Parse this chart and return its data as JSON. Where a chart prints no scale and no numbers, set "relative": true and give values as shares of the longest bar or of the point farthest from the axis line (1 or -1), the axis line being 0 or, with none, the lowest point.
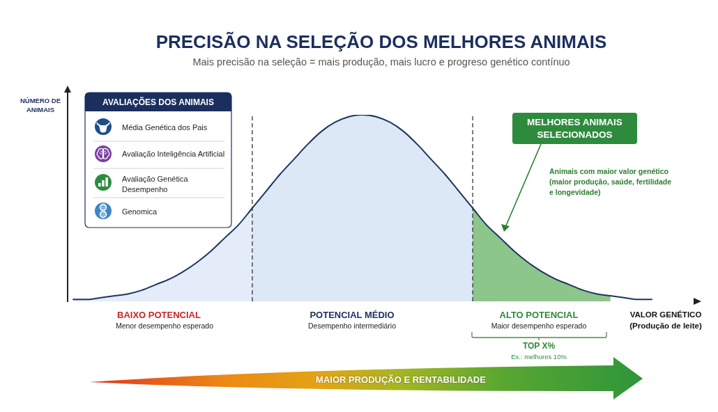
{
  "chart_data": {
    "type": "area",
    "title": "PRECISÃO NA SELEÇÃO DOS MELHORES ANIMAIS",
    "subtitle": "Mais precisão na seleção = mais produção, mais lucro e progreso genético contínuo",
    "xlabel": "VALOR GENÉTICO (Produção de leite)",
    "ylabel": "NÚMERO DE ANIMAIS",
    "relative": true,
    "categories": [
      null,
      null,
      null,
      null,
      null,
      null,
      null,
      null,
      null,
      null,
      null,
      null,
      null,
      null,
      null,
      null,
      null,
      null,
      null,
      null,
      null,
      null,
      null,
      null,
      null,
      null,
      null,
      null,
      null,
      null,
      null,
      null,
      null,
      null,
      null,
      null,
      null,
      null,
      null,
      null,
      null,
      null,
      null
    ],
    "series": [
      {
        "color": "#e3ecf8",
        "values": [
          0.01,
          0.01,
          0.02,
          0.03,
          0.04,
          0.06,
          0.09,
          0.12,
          0.16,
          0.21,
          0.27,
          0.34,
          0.41,
          0.5,
          null,
          null,
          null,
          null,
          null,
          null,
          null,
          null,
          null,
          null,
          null,
          null,
          null,
          null,
          null,
          null,
          null,
          null,
          null,
          null,
          null,
          null,
          null,
          null,
          null,
          null,
          null,
          null,
          null
        ]
      },
      {
        "color": "#dde8f6",
        "values": [
          null,
          null,
          null,
          null,
          null,
          null,
          null,
          null,
          null,
          null,
          null,
          null,
          null,
          0.5,
          0.59,
          0.68,
          0.76,
          0.84,
          0.91,
          0.96,
          0.99,
          1,
          0.99,
          0.96,
          0.91,
          0.84,
          0.76,
          0.68,
          0.59,
          0.5,
          null,
          null,
          null,
          null,
          null,
          null,
          null,
          null,
          null,
          null,
          null,
          null,
          null
        ]
      },
      {
        "color": "#8cc68a",
        "values": [
          null,
          null,
          null,
          null,
          null,
          null,
          null,
          null,
          null,
          null,
          null,
          null,
          null,
          null,
          null,
          null,
          null,
          null,
          null,
          null,
          null,
          null,
          null,
          null,
          null,
          null,
          null,
          null,
          null,
          0.5,
          0.41,
          0.34,
          0.27,
          0.21,
          0.16,
          0.12,
          0.09,
          0.06,
          0.04,
          0.03,
          null,
          null,
          null
        ]
      },
      {
        "type": "line",
        "color": "#1d3461",
        "values": [
          0.01,
          0.01,
          0.02,
          0.03,
          0.04,
          0.06,
          0.09,
          0.12,
          0.16,
          0.21,
          0.27,
          0.34,
          0.41,
          0.5,
          0.59,
          0.68,
          0.76,
          0.84,
          0.91,
          0.96,
          0.99,
          1,
          0.99,
          0.96,
          0.91,
          0.84,
          0.76,
          0.68,
          0.59,
          0.5,
          0.41,
          0.34,
          0.27,
          0.21,
          0.16,
          0.12,
          0.09,
          0.06,
          0.04,
          0.03,
          0.02,
          0.01,
          0.01
        ]
      }
    ],
    "annotations": [
      "AVALIAÇÕES DOS ANIMAIS",
      "Média Genética dos Pais",
      "Avaliação Inteligência Artificial",
      "Avaliação Genética Desempenho",
      "Genomica",
      "MELHORES ANIMAIS SELECIONADOS",
      "Animais com maior valor genético (maior produção, saúde, fertilidade e longevidade)",
      "BAIXO POTENCIAL",
      "Menor desempenho esperado",
      "POTENCIAL MÉDIO",
      "Desempenho intermediário",
      "ALTO POTENCIAL",
      "Maior desempenho esperado",
      "TOP X%",
      "Ex.: melhores 10%",
      "MAIOR PRODUÇÃO E RENTABILIDADE"
    ]
  }
}
